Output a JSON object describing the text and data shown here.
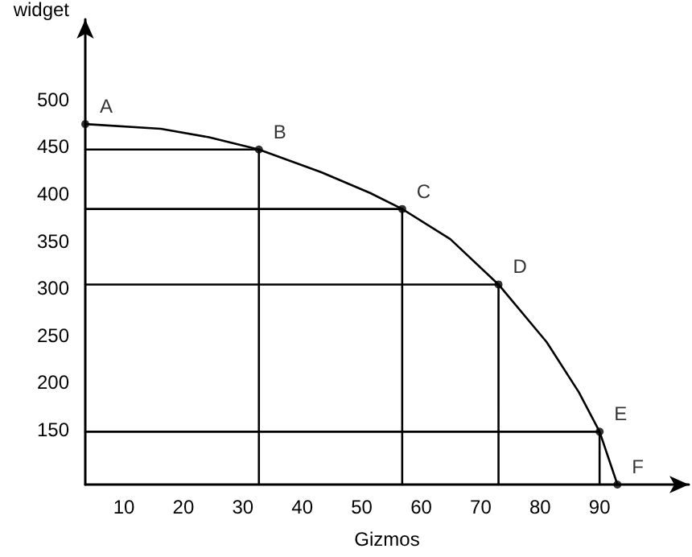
{
  "chart_data": {
    "type": "line",
    "xlabel": "Gizmos",
    "ylabel": "widget",
    "xlim": [
      3.5,
      105
    ],
    "ylim": [
      92,
      585
    ],
    "xticks": [
      10,
      20,
      30,
      40,
      50,
      60,
      70,
      80,
      90
    ],
    "yticks": [
      150,
      200,
      250,
      300,
      350,
      400,
      450,
      500
    ],
    "marker": "circle",
    "line_style": "solid",
    "series": [
      {
        "color": "#000000",
        "marker": "none",
        "x": [
          3.5,
          16.2,
          24.3,
          32.7,
          43.2,
          51.4,
          56.8,
          64.9,
          73,
          81.1,
          86.5,
          90,
          93
        ],
        "values": [
          474,
          469,
          460,
          447,
          423,
          401,
          384,
          352,
          304,
          243,
          190,
          148,
          92
        ]
      },
      {
        "type": "scatter",
        "color": "#000000",
        "x": [
          3.5,
          32.7,
          56.8,
          73,
          90,
          93
        ],
        "values": [
          474,
          447,
          384,
          304,
          148,
          92
        ]
      },
      {
        "color": "#000000",
        "marker": "none",
        "x": [
          3.5,
          32.7,
          32.7
        ],
        "values": [
          447,
          447,
          92
        ]
      },
      {
        "color": "#000000",
        "marker": "none",
        "x": [
          3.5,
          56.8,
          56.8
        ],
        "values": [
          384,
          384,
          92
        ]
      },
      {
        "color": "#000000",
        "marker": "none",
        "x": [
          3.5,
          73,
          73
        ],
        "values": [
          304,
          304,
          92
        ]
      },
      {
        "color": "#000000",
        "marker": "none",
        "x": [
          3.5,
          90,
          90
        ],
        "values": [
          148,
          148,
          92
        ]
      }
    ],
    "annotations": [
      {
        "text": "A",
        "x": 3.5,
        "y": 474
      },
      {
        "text": "B",
        "x": 32.7,
        "y": 447
      },
      {
        "text": "C",
        "x": 56.8,
        "y": 384
      },
      {
        "text": "D",
        "x": 73,
        "y": 304
      },
      {
        "text": "E",
        "x": 90,
        "y": 148
      },
      {
        "text": "F",
        "x": 93,
        "y": 92
      }
    ]
  }
}
